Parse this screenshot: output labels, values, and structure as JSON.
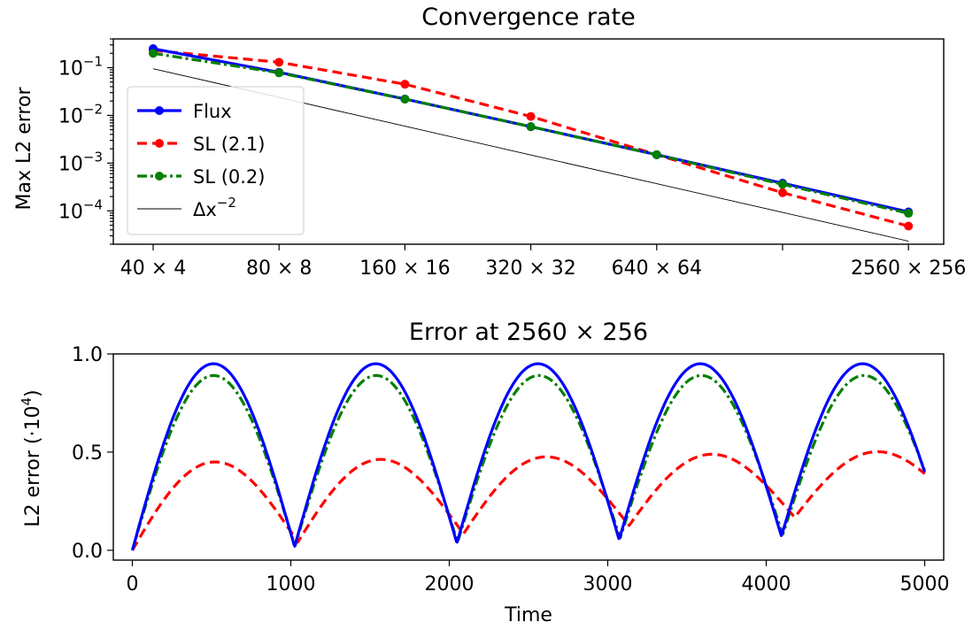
{
  "chart_data": [
    {
      "type": "line",
      "title": "Convergence rate",
      "xlabel": "",
      "ylabel": "Max L2 error",
      "yscale": "log",
      "ylim": [
        2e-05,
        0.4
      ],
      "grid": false,
      "legend": "lower-left",
      "categories": [
        "40 × 4",
        "80 × 8",
        "160 × 16",
        "320 × 32",
        "640 × 64",
        "",
        "2560 × 256"
      ],
      "yticks": [
        {
          "value": 0.1,
          "label": "10",
          "exp": "−1"
        },
        {
          "value": 0.01,
          "label": "10",
          "exp": "−2"
        },
        {
          "value": 0.001,
          "label": "10",
          "exp": "−3"
        },
        {
          "value": 0.0001,
          "label": "10",
          "exp": "−4"
        }
      ],
      "series": [
        {
          "name": "Flux",
          "color": "#0000ff",
          "dash": "solid",
          "marker": true,
          "values": [
            0.25,
            0.08,
            0.022,
            0.0058,
            0.0015,
            0.00038,
            9.5e-05
          ]
        },
        {
          "name": "SL (2.1)",
          "color": "#ff0000",
          "dash": "dashed",
          "marker": true,
          "values": [
            0.23,
            0.13,
            0.045,
            0.0095,
            0.0015,
            0.00024,
            4.8e-05
          ]
        },
        {
          "name": "SL (0.2)",
          "color": "#008000",
          "dash": "dashdot",
          "marker": true,
          "values": [
            0.2,
            0.078,
            0.022,
            0.0058,
            0.0015,
            0.00036,
            8.9e-05
          ]
        },
        {
          "name": "Δx",
          "name_sup": "−2",
          "color": "#000000",
          "dash": "thin",
          "marker": false,
          "values": [
            0.095,
            0.0238,
            0.00594,
            0.00148,
            0.000371,
            9.28e-05,
            2.32e-05
          ]
        }
      ]
    },
    {
      "type": "line",
      "title": "Error at 2560 × 256",
      "xlabel": "Time",
      "ylabel": "L2 error (·10",
      "ylabel_sup": "4",
      "ylabel_end": ")",
      "xlim": [
        -120,
        5120
      ],
      "ylim": [
        -0.05,
        1.0
      ],
      "xticks": [
        0,
        1000,
        2000,
        3000,
        4000,
        5000
      ],
      "yticks": [
        0.0,
        0.5,
        1.0
      ],
      "ytick_labels": [
        "0.0",
        "0.5",
        "1.0"
      ],
      "grid": false,
      "series": [
        {
          "name": "Flux",
          "color": "#0000ff",
          "dash": "solid",
          "period": 1024,
          "amplitude": 0.95,
          "amp_growth": 0,
          "floor": 0.0,
          "floor_growth": 0.018,
          "phase_shift": 0
        },
        {
          "name": "SL (2.1)",
          "color": "#ff0000",
          "dash": "dashed",
          "period": 1045,
          "amplitude": 0.45,
          "amp_growth": 0.013,
          "floor": 0.0,
          "floor_growth": 0.042,
          "phase_shift": 0
        },
        {
          "name": "SL (0.2)",
          "color": "#008000",
          "dash": "dashdot",
          "period": 1026,
          "amplitude": 0.89,
          "amp_growth": 0,
          "floor": 0.0,
          "floor_growth": 0.02,
          "phase_shift": 0
        }
      ]
    }
  ]
}
